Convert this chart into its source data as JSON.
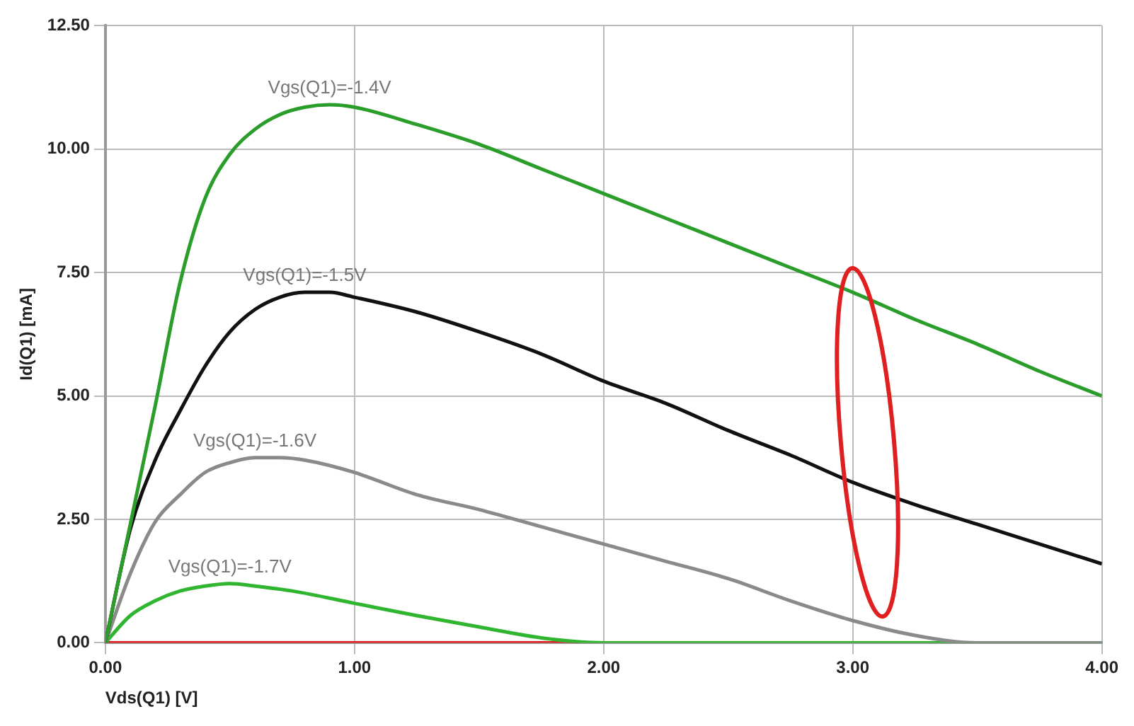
{
  "chart_data": {
    "type": "line",
    "xlabel": "Vds(Q1) [V]",
    "ylabel": "Id(Q1) [mA]",
    "xlim": [
      0,
      4
    ],
    "xticks": [
      {
        "value": 0,
        "label": "0.00"
      },
      {
        "value": 1,
        "label": "1.00"
      },
      {
        "value": 2,
        "label": "2.00"
      },
      {
        "value": 3,
        "label": "3.00"
      },
      {
        "value": 4,
        "label": "4.00"
      }
    ],
    "ylim": [
      0,
      12.5
    ],
    "yticks": [
      {
        "value": 0,
        "label": "0.00"
      },
      {
        "value": 2.5,
        "label": "2.50"
      },
      {
        "value": 5,
        "label": "5.00"
      },
      {
        "value": 7.5,
        "label": "7.50"
      },
      {
        "value": 10,
        "label": "10.00"
      },
      {
        "value": 12.5,
        "label": "12.50"
      }
    ],
    "grid": true,
    "legend": false,
    "marker": "none",
    "line_style": "solid",
    "series": [
      {
        "name": "Vgs(Q1)=-1.4V",
        "color": "#2a9d2a",
        "x": [
          0,
          0.1,
          0.2,
          0.3,
          0.4,
          0.5,
          0.6,
          0.7,
          0.8,
          0.9,
          1.0,
          1.25,
          1.5,
          1.75,
          2.0,
          2.25,
          2.5,
          2.75,
          3.0,
          3.25,
          3.5,
          3.75,
          4.0
        ],
        "values": [
          0,
          2.4,
          4.8,
          7.3,
          9.0,
          9.9,
          10.4,
          10.7,
          10.85,
          10.9,
          10.85,
          10.5,
          10.1,
          9.6,
          9.1,
          8.6,
          8.1,
          7.6,
          7.1,
          6.55,
          6.05,
          5.5,
          5.0
        ]
      },
      {
        "name": "Vgs(Q1)=-1.5V",
        "color": "#111111",
        "x": [
          0,
          0.1,
          0.2,
          0.3,
          0.4,
          0.5,
          0.6,
          0.7,
          0.8,
          0.9,
          1.0,
          1.25,
          1.5,
          1.75,
          2.0,
          2.25,
          2.5,
          2.75,
          3.0,
          3.25,
          3.5,
          3.75,
          4.0
        ],
        "values": [
          0,
          2.3,
          3.7,
          4.7,
          5.6,
          6.3,
          6.75,
          7.0,
          7.1,
          7.1,
          7.0,
          6.7,
          6.3,
          5.85,
          5.3,
          4.85,
          4.3,
          3.8,
          3.25,
          2.8,
          2.4,
          2.0,
          1.6
        ]
      },
      {
        "name": "Vgs(Q1)=-1.6V",
        "color": "#8a8a8a",
        "x": [
          0,
          0.1,
          0.2,
          0.3,
          0.4,
          0.5,
          0.6,
          0.7,
          0.8,
          1.0,
          1.25,
          1.5,
          1.75,
          2.0,
          2.25,
          2.5,
          2.75,
          3.0,
          3.25,
          3.5,
          4.0
        ],
        "values": [
          0,
          1.4,
          2.45,
          3.0,
          3.45,
          3.65,
          3.75,
          3.75,
          3.7,
          3.45,
          3.0,
          2.7,
          2.35,
          2.0,
          1.65,
          1.3,
          0.85,
          0.45,
          0.15,
          0,
          0
        ]
      },
      {
        "name": "Vgs(Q1)=-1.7V",
        "color": "#2fb52f",
        "x": [
          0,
          0.1,
          0.2,
          0.3,
          0.4,
          0.5,
          0.6,
          0.75,
          1.0,
          1.25,
          1.5,
          1.75,
          2.0,
          2.5,
          3.0,
          3.5,
          4.0
        ],
        "values": [
          0,
          0.55,
          0.85,
          1.05,
          1.15,
          1.2,
          1.15,
          1.05,
          0.8,
          0.55,
          0.32,
          0.1,
          0,
          0,
          0,
          0,
          0
        ]
      },
      {
        "color": "#e02020",
        "x": [
          0,
          0.5,
          1.0,
          1.5,
          1.9
        ],
        "values": [
          0,
          0,
          0,
          0,
          0
        ]
      }
    ]
  }
}
